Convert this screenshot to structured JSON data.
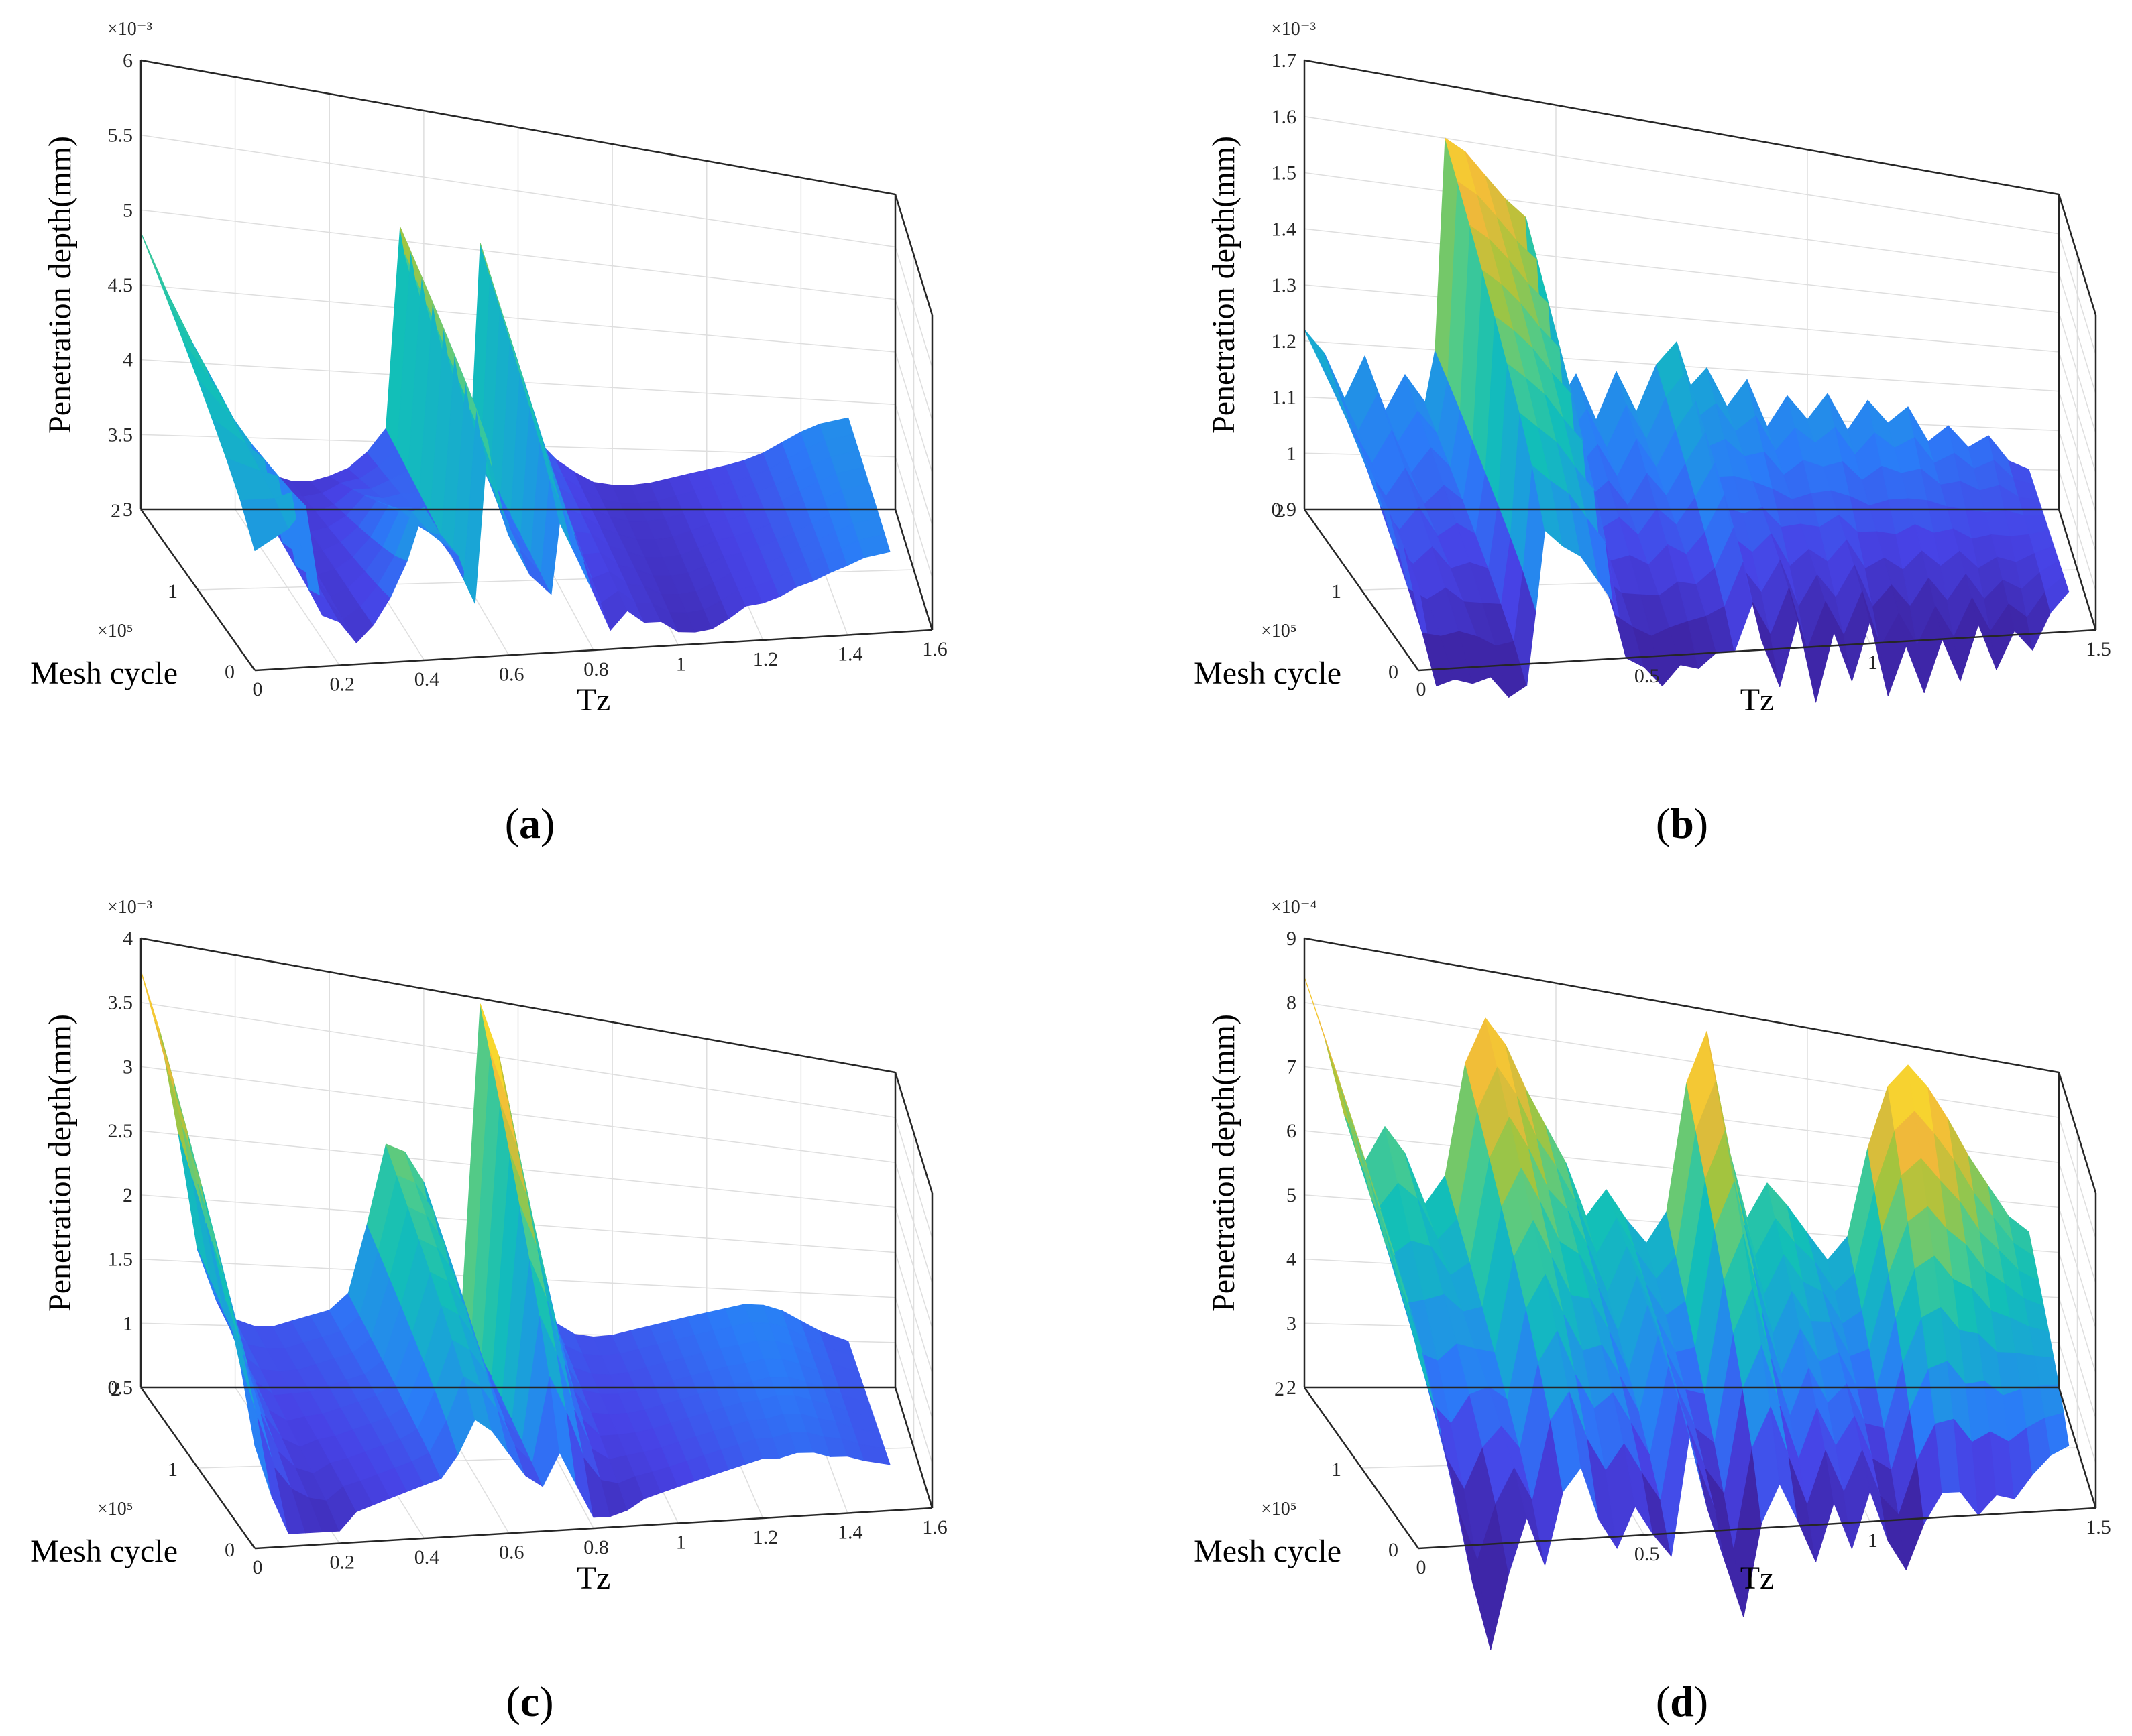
{
  "figure": {
    "panels": [
      "(a)",
      "(b)",
      "(c)",
      "(d)"
    ]
  },
  "colors": {
    "colormap": [
      "#3e26a8",
      "#4743e6",
      "#2b7bf8",
      "#1aa2d9",
      "#12bfb8",
      "#4ccb8d",
      "#a7c43c",
      "#f0b93a",
      "#f9d92d",
      "#f9fb15"
    ],
    "axis": "#262626",
    "grid": "#dedede"
  },
  "chart_data": [
    {
      "panel": "(a)",
      "type": "surface",
      "xlabel": "Tz",
      "ylabel": "Mesh cycle",
      "zlabel": "Penetration depth(mm)",
      "z_exponent": "×10⁻³",
      "y_exponent": "×10⁵",
      "xlim": [
        0,
        1.6
      ],
      "ylim": [
        0,
        2
      ],
      "zlim": [
        3,
        6
      ],
      "x_ticks": [
        "0",
        "0.2",
        "0.4",
        "0.6",
        "0.8",
        "1",
        "1.2",
        "1.4",
        "1.6"
      ],
      "y_ticks": [
        "0",
        "1",
        "2"
      ],
      "z_ticks": [
        "3",
        "3.5",
        "4",
        "4.5",
        "5",
        "5.5",
        "6"
      ],
      "profile_x": [
        0,
        0.08,
        0.12,
        0.16,
        0.2,
        0.24,
        0.28,
        0.32,
        0.36,
        0.4,
        0.44,
        0.48,
        0.52,
        0.55,
        0.56,
        0.6,
        0.65,
        0.7,
        0.72,
        0.75,
        0.8,
        0.84,
        0.88,
        0.92,
        0.96,
        1.0,
        1.04,
        1.08,
        1.12,
        1.16,
        1.2,
        1.24,
        1.28,
        1.32,
        1.36,
        1.4,
        1.44,
        1.5
      ],
      "profile_z": [
        4.85,
        4.3,
        3.9,
        3.55,
        3.42,
        3.3,
        3.24,
        3.2,
        3.2,
        3.24,
        3.3,
        3.42,
        3.6,
        5.1,
        4.9,
        4.4,
        3.9,
        3.55,
        5.05,
        4.7,
        4.0,
        3.55,
        3.4,
        3.3,
        3.22,
        3.2,
        3.2,
        3.22,
        3.26,
        3.3,
        3.34,
        3.38,
        3.43,
        3.5,
        3.6,
        3.7,
        3.78,
        3.85
      ],
      "depth_z": [
        3.8,
        4.0,
        4.2,
        3.6,
        3.5,
        3.4,
        3.45,
        3.7,
        3.9,
        4.3,
        4.1,
        3.9,
        3.5,
        4.6,
        4.4,
        4.0,
        3.7,
        3.5,
        4.0,
        3.9,
        3.6,
        3.4,
        3.5,
        3.45,
        3.4,
        3.35,
        3.3,
        3.3,
        3.35,
        3.4,
        3.42,
        3.45,
        3.5,
        3.55,
        3.6,
        3.65,
        3.7,
        3.75
      ],
      "front_bias": [
        0,
        -0.05,
        -0.1,
        -0.25,
        -0.2,
        -0.25,
        -0.18,
        -0.24,
        -0.18,
        -0.2,
        -0.2,
        -0.15,
        -0.1,
        0,
        0,
        -0.1,
        -0.1,
        -0.05,
        0,
        -0.1,
        -0.15,
        -0.25,
        -0.2,
        -0.25,
        -0.2,
        -0.24,
        -0.2,
        -0.18,
        -0.15,
        -0.1,
        -0.1,
        -0.08,
        -0.05,
        -0.05,
        -0.03,
        -0.02,
        0,
        0
      ]
    },
    {
      "panel": "(b)",
      "type": "surface",
      "xlabel": "Tz",
      "ylabel": "Mesh cycle",
      "zlabel": "Penetration depth(mm)",
      "z_exponent": "×10⁻³",
      "y_exponent": "×10⁵",
      "xlim": [
        0,
        1.5
      ],
      "ylim": [
        0,
        2
      ],
      "zlim": [
        0.9,
        1.7
      ],
      "x_ticks": [
        "0",
        "0.5",
        "1",
        "1.5"
      ],
      "y_ticks": [
        "0",
        "1",
        "2"
      ],
      "z_ticks": [
        "0.9",
        "1",
        "1.1",
        "1.2",
        "1.3",
        "1.4",
        "1.5",
        "1.6",
        "1.7"
      ],
      "profile_x": [
        0,
        0.04,
        0.08,
        0.12,
        0.16,
        0.2,
        0.24,
        0.26,
        0.28,
        0.32,
        0.36,
        0.4,
        0.44,
        0.46,
        0.5,
        0.54,
        0.58,
        0.62,
        0.66,
        0.7,
        0.74,
        0.76,
        0.8,
        0.84,
        0.88,
        0.92,
        0.96,
        1.0,
        1.04,
        1.08,
        1.12,
        1.16,
        1.2,
        1.24,
        1.28,
        1.32,
        1.36,
        1.4,
        1.44
      ],
      "profile_z": [
        1.22,
        1.18,
        1.1,
        1.18,
        1.08,
        1.15,
        1.1,
        1.2,
        1.6,
        1.58,
        1.54,
        1.5,
        1.47,
        1.15,
        1.1,
        1.17,
        1.08,
        1.18,
        1.1,
        1.2,
        1.25,
        1.15,
        1.2,
        1.12,
        1.18,
        1.08,
        1.15,
        1.1,
        1.16,
        1.08,
        1.15,
        1.1,
        1.14,
        1.06,
        1.1,
        1.05,
        1.08,
        1.02,
        1.0
      ],
      "depth_z": [
        1.05,
        0.95,
        1.0,
        0.92,
        1.0,
        0.9,
        0.98,
        1.05,
        1.15,
        1.12,
        1.1,
        1.05,
        1.0,
        0.95,
        0.98,
        0.9,
        1.0,
        0.92,
        1.0,
        0.95,
        1.02,
        0.98,
        0.92,
        1.0,
        0.9,
        0.98,
        0.92,
        1.0,
        0.9,
        0.95,
        0.88,
        0.95,
        0.9,
        0.97,
        0.9,
        0.95,
        0.92,
        0.97,
        1.0
      ],
      "front_bias": [
        0,
        -0.08,
        -0.12,
        -0.05,
        -0.12,
        -0.06,
        -0.12,
        -0.05,
        0,
        0,
        0,
        0,
        0,
        -0.05,
        -0.1,
        -0.06,
        -0.12,
        -0.05,
        -0.1,
        -0.05,
        -0.02,
        -0.06,
        -0.1,
        -0.04,
        -0.12,
        -0.05,
        -0.1,
        -0.05,
        -0.12,
        -0.06,
        -0.1,
        -0.05,
        -0.1,
        -0.04,
        -0.08,
        -0.04,
        -0.06,
        -0.02,
        0
      ]
    },
    {
      "panel": "(c)",
      "type": "surface",
      "xlabel": "Tz",
      "ylabel": "Mesh cycle",
      "zlabel": "Penetration depth(mm)",
      "z_exponent": "×10⁻³",
      "y_exponent": "×10⁵",
      "xlim": [
        0,
        1.6
      ],
      "ylim": [
        0,
        2
      ],
      "zlim": [
        0.5,
        4
      ],
      "x_ticks": [
        "0",
        "0.2",
        "0.4",
        "0.6",
        "0.8",
        "1",
        "1.2",
        "1.4",
        "1.6"
      ],
      "y_ticks": [
        "0",
        "1",
        "2"
      ],
      "z_ticks": [
        "0.5",
        "1",
        "1.5",
        "2",
        "2.5",
        "3",
        "3.5",
        "4"
      ],
      "profile_x": [
        0,
        0.04,
        0.08,
        0.12,
        0.16,
        0.2,
        0.24,
        0.28,
        0.32,
        0.36,
        0.4,
        0.44,
        0.48,
        0.52,
        0.56,
        0.6,
        0.64,
        0.68,
        0.72,
        0.76,
        0.8,
        0.84,
        0.88,
        0.92,
        0.96,
        1.0,
        1.04,
        1.08,
        1.12,
        1.16,
        1.2,
        1.24,
        1.28,
        1.32,
        1.36,
        1.4,
        1.44,
        1.5
      ],
      "profile_z": [
        3.75,
        3.3,
        2.5,
        1.6,
        1.2,
        1.05,
        1.0,
        1.0,
        1.05,
        1.1,
        1.15,
        1.3,
        1.9,
        2.6,
        2.55,
        2.3,
        1.5,
        1.15,
        3.95,
        3.5,
        2.6,
        1.5,
        1.1,
        1.0,
        0.98,
        1.0,
        1.05,
        1.1,
        1.15,
        1.2,
        1.25,
        1.3,
        1.35,
        1.35,
        1.3,
        1.2,
        1.1,
        1.0
      ],
      "depth_z": [
        1.3,
        1.2,
        1.1,
        1.0,
        0.9,
        0.8,
        0.85,
        0.9,
        0.95,
        1.0,
        1.05,
        1.1,
        1.3,
        1.5,
        1.4,
        1.3,
        1.1,
        1.0,
        1.2,
        1.1,
        1.0,
        0.9,
        0.85,
        0.85,
        0.9,
        0.95,
        1.0,
        1.05,
        1.1,
        1.15,
        1.2,
        1.2,
        1.2,
        1.2,
        1.15,
        1.1,
        1.05,
        1.0
      ],
      "front_bias": [
        0,
        -0.3,
        -0.5,
        -0.4,
        -0.3,
        -0.2,
        -0.1,
        -0.1,
        -0.1,
        -0.1,
        -0.1,
        -0.1,
        -0.1,
        0,
        0,
        -0.1,
        -0.1,
        -0.1,
        0,
        -0.2,
        -0.4,
        -0.3,
        -0.2,
        -0.1,
        -0.1,
        -0.1,
        -0.1,
        -0.1,
        -0.1,
        -0.1,
        -0.1,
        -0.1,
        -0.05,
        -0.05,
        -0.05,
        0,
        0,
        0
      ]
    },
    {
      "panel": "(d)",
      "type": "surface",
      "xlabel": "Tz",
      "ylabel": "Mesh cycle",
      "zlabel": "Penetration depth(mm)",
      "z_exponent": "×10⁻⁴",
      "y_exponent": "×10⁵",
      "xlim": [
        0,
        1.5
      ],
      "ylim": [
        0,
        2
      ],
      "zlim": [
        2,
        9
      ],
      "x_ticks": [
        "0",
        "0.5",
        "1",
        "1.5"
      ],
      "y_ticks": [
        "0",
        "1",
        "2"
      ],
      "z_ticks": [
        "2",
        "3",
        "4",
        "5",
        "6",
        "7",
        "8",
        "9"
      ],
      "profile_x": [
        0,
        0.04,
        0.08,
        0.12,
        0.16,
        0.2,
        0.24,
        0.28,
        0.32,
        0.36,
        0.4,
        0.44,
        0.48,
        0.52,
        0.56,
        0.6,
        0.64,
        0.68,
        0.72,
        0.76,
        0.8,
        0.84,
        0.88,
        0.92,
        0.96,
        1.0,
        1.04,
        1.08,
        1.12,
        1.16,
        1.2,
        1.24,
        1.28,
        1.32,
        1.36,
        1.4,
        1.44
      ],
      "profile_z": [
        8.4,
        7.5,
        6.3,
        5.6,
        6.2,
        5.8,
        5.0,
        5.5,
        7.4,
        8.2,
        7.8,
        7.1,
        6.5,
        5.9,
        5.0,
        5.5,
        5.0,
        4.6,
        5.2,
        7.6,
        8.6,
        6.6,
        5.2,
        5.9,
        5.5,
        5.0,
        4.5,
        5.0,
        6.8,
        8.1,
        8.6,
        8.2,
        7.6,
        6.9,
        6.3,
        5.7,
        5.4
      ],
      "depth_z": [
        5.0,
        4.6,
        4.0,
        3.2,
        2.5,
        3.0,
        3.4,
        2.8,
        3.6,
        3.8,
        3.3,
        3.0,
        3.5,
        3.2,
        3.0,
        4.5,
        3.6,
        3.0,
        2.4,
        3.3,
        3.6,
        3.3,
        2.9,
        3.4,
        2.9,
        3.6,
        3.0,
        2.8,
        3.1,
        3.3,
        3.1,
        3.0,
        3.4,
        3.3,
        3.6,
        3.8,
        3.8
      ],
      "front_bias": [
        0,
        -0.5,
        -1.2,
        -1.8,
        -2.2,
        -1.5,
        -1.0,
        -1.2,
        -0.8,
        -0.6,
        -1.0,
        -1.2,
        -1.0,
        -1.2,
        -1.4,
        -0.8,
        -1.2,
        -1.6,
        -2.0,
        -1.2,
        -0.8,
        -1.2,
        -1.6,
        -1.0,
        -1.4,
        -1.0,
        -1.4,
        -1.8,
        -1.2,
        -0.8,
        -0.6,
        -1.0,
        -1.0,
        -1.0,
        -0.8,
        -0.6,
        -0.4
      ]
    }
  ]
}
